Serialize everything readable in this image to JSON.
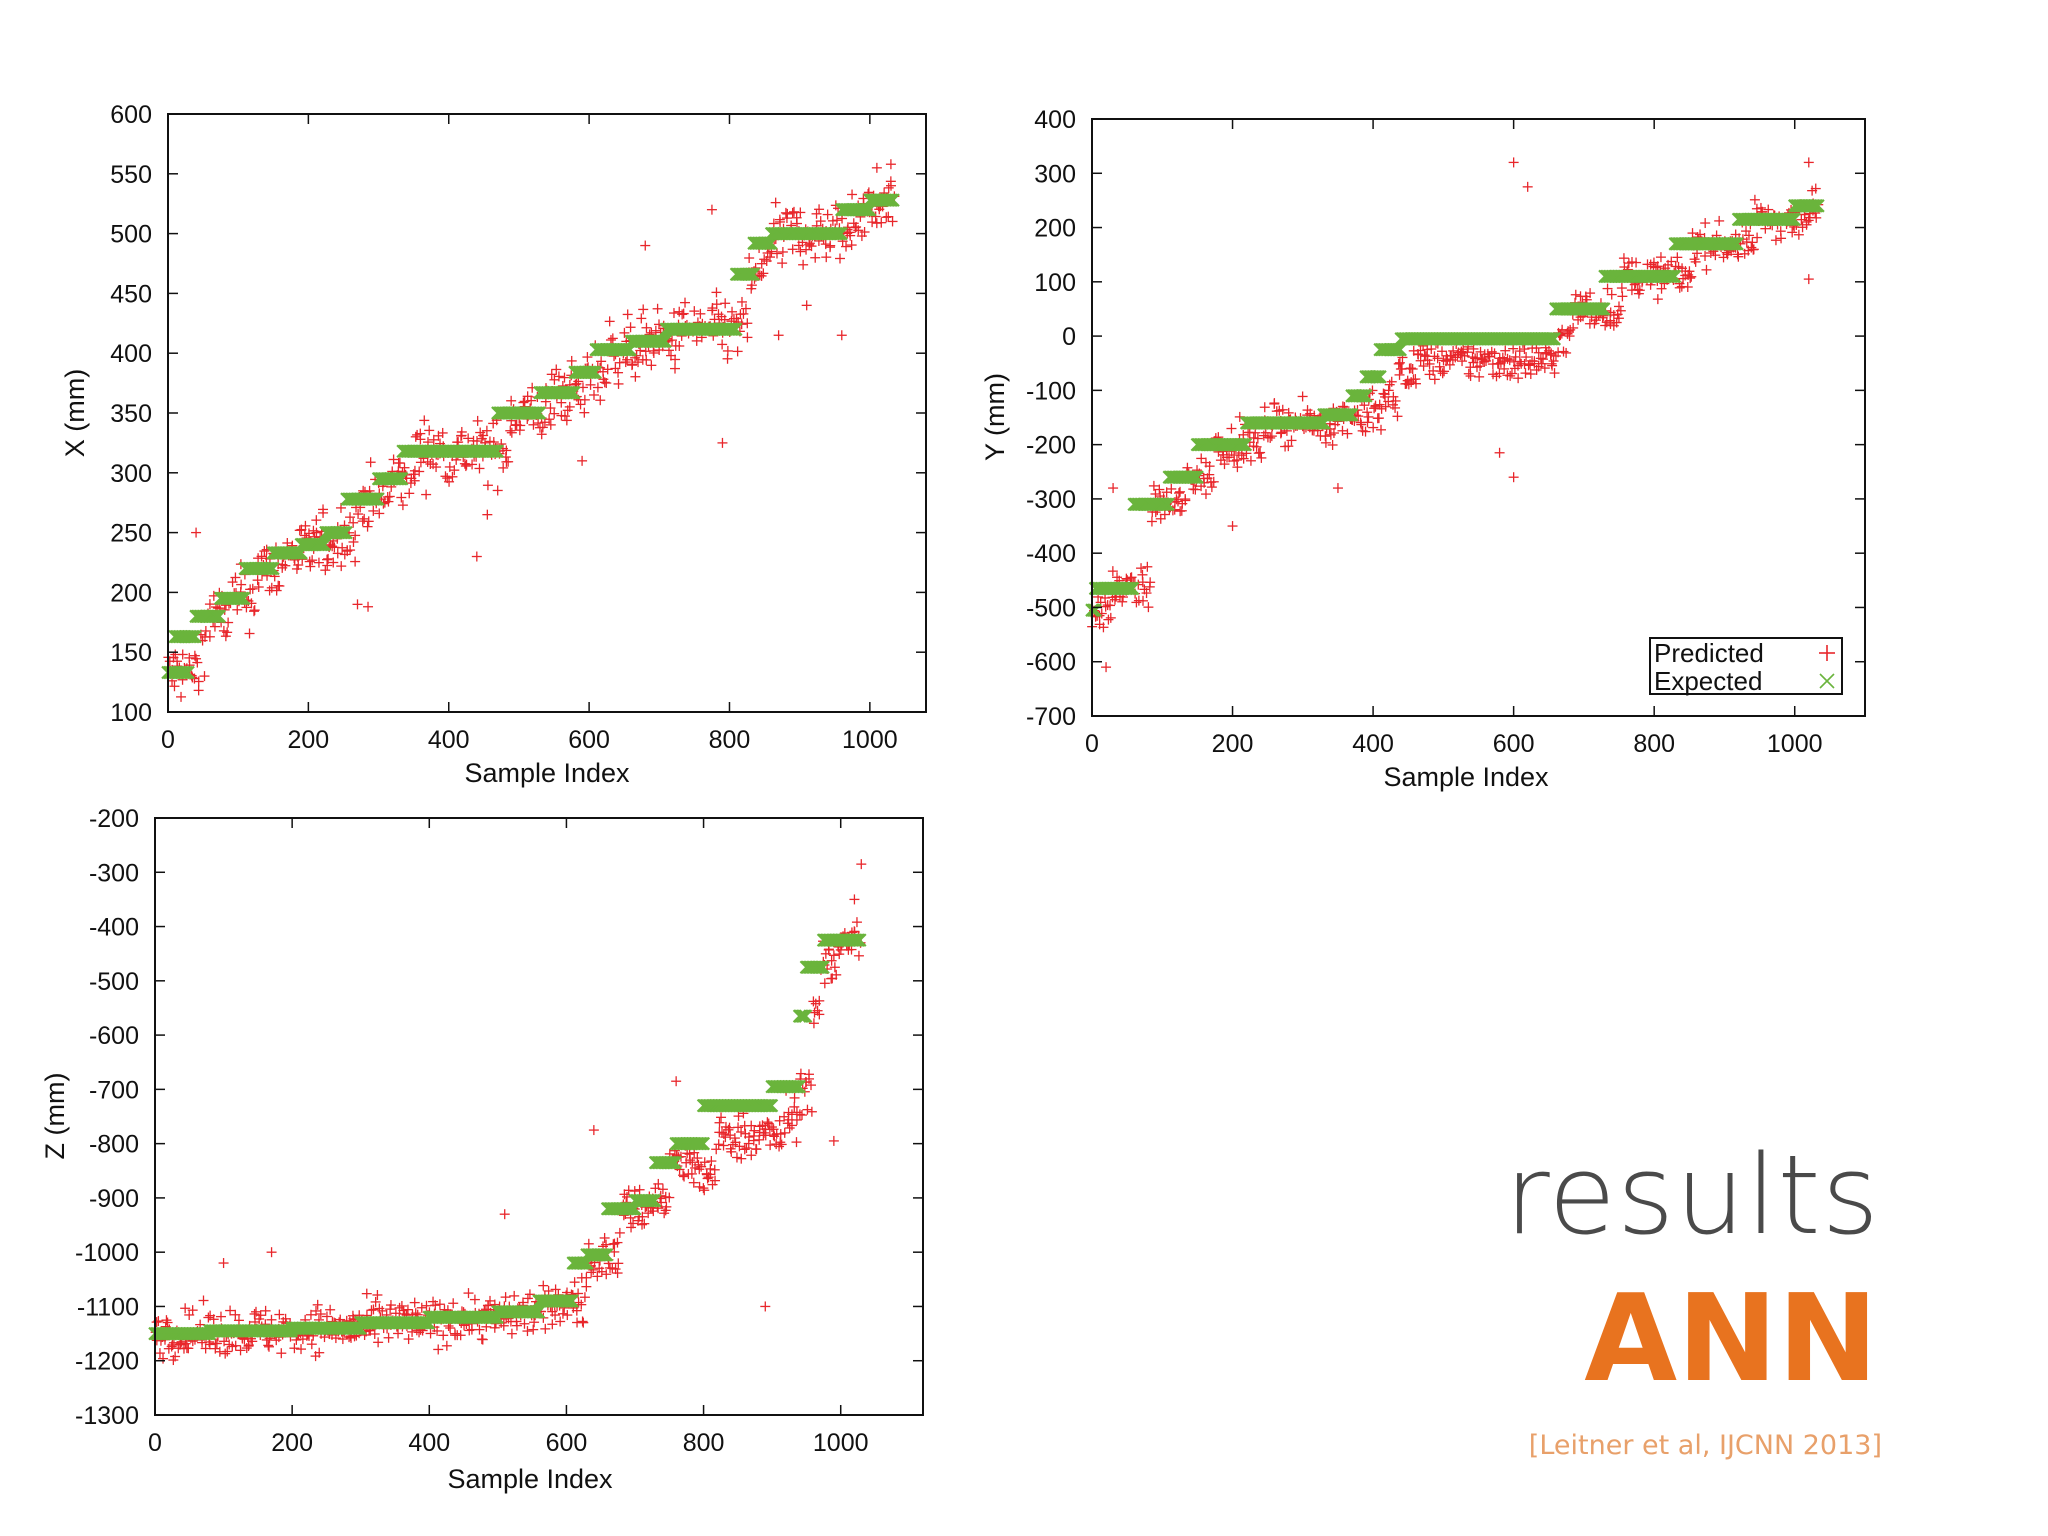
{
  "slide": {
    "title": "results",
    "subtitle": "ANN",
    "citation": "[Leitner et al, IJCNN 2013]"
  },
  "colors": {
    "predicted": "#e8262b",
    "expected": "#6ab43c",
    "axis": "#111111",
    "title": "#4a4a4a",
    "subtitle": "#e8731f",
    "citation": "#e8a06a"
  },
  "chart_data": [
    {
      "type": "scatter",
      "id": "x",
      "xlabel": "Sample Index",
      "ylabel": "X (mm)",
      "xlim": [
        0,
        1080
      ],
      "ylim": [
        100,
        600
      ],
      "xticks": [
        0,
        200,
        400,
        600,
        800,
        1000
      ],
      "yticks": [
        100,
        150,
        200,
        250,
        300,
        350,
        400,
        450,
        500,
        550,
        600
      ],
      "legend": null,
      "expected_segments": [
        [
          0,
          30,
          133
        ],
        [
          10,
          40,
          163
        ],
        [
          40,
          75,
          180
        ],
        [
          75,
          110,
          195
        ],
        [
          110,
          150,
          220
        ],
        [
          150,
          190,
          233
        ],
        [
          190,
          225,
          240
        ],
        [
          225,
          255,
          250
        ],
        [
          255,
          300,
          278
        ],
        [
          300,
          335,
          295
        ],
        [
          335,
          470,
          318
        ],
        [
          470,
          530,
          350
        ],
        [
          530,
          580,
          367
        ],
        [
          580,
          610,
          384
        ],
        [
          610,
          660,
          403
        ],
        [
          660,
          710,
          410
        ],
        [
          710,
          810,
          420
        ],
        [
          810,
          835,
          466
        ],
        [
          835,
          860,
          492
        ],
        [
          860,
          960,
          500
        ],
        [
          960,
          1000,
          520
        ],
        [
          1000,
          1035,
          528
        ]
      ],
      "predicted_outliers": [
        [
          40,
          250
        ],
        [
          270,
          190
        ],
        [
          285,
          188
        ],
        [
          440,
          230
        ],
        [
          455,
          265
        ],
        [
          590,
          310
        ],
        [
          680,
          490
        ],
        [
          775,
          520
        ],
        [
          790,
          325
        ],
        [
          870,
          415
        ],
        [
          960,
          415
        ],
        [
          1010,
          555
        ],
        [
          1030,
          558
        ],
        [
          910,
          440
        ]
      ],
      "predicted_noise": 18,
      "predicted_lag": 4
    },
    {
      "type": "scatter",
      "id": "y",
      "xlabel": "Sample Index",
      "ylabel": "Y (mm)",
      "xlim": [
        0,
        1100
      ],
      "ylim": [
        -700,
        400
      ],
      "xticks": [
        0,
        200,
        400,
        600,
        800,
        1000
      ],
      "yticks": [
        -700,
        -600,
        -500,
        -400,
        -300,
        -200,
        -100,
        0,
        100,
        200,
        300,
        400
      ],
      "legend": {
        "position": "bottom-right",
        "entries": [
          "Predicted",
          "Expected"
        ]
      },
      "expected_segments": [
        [
          0,
          5,
          -505
        ],
        [
          5,
          60,
          -465
        ],
        [
          60,
          110,
          -310
        ],
        [
          110,
          150,
          -260
        ],
        [
          150,
          220,
          -200
        ],
        [
          220,
          330,
          -160
        ],
        [
          330,
          370,
          -145
        ],
        [
          370,
          390,
          -110
        ],
        [
          390,
          410,
          -75
        ],
        [
          410,
          440,
          -25
        ],
        [
          440,
          660,
          -5
        ],
        [
          660,
          730,
          50
        ],
        [
          730,
          830,
          110
        ],
        [
          830,
          920,
          170
        ],
        [
          920,
          1000,
          215
        ],
        [
          1000,
          1035,
          240
        ]
      ],
      "predicted_outliers": [
        [
          20,
          -610
        ],
        [
          30,
          -280
        ],
        [
          600,
          320
        ],
        [
          620,
          275
        ],
        [
          580,
          -215
        ],
        [
          600,
          -260
        ],
        [
          1020,
          320
        ],
        [
          1020,
          105
        ],
        [
          200,
          -350
        ],
        [
          350,
          -280
        ]
      ],
      "predicted_noise": 25,
      "predicted_lag": 6
    },
    {
      "type": "scatter",
      "id": "z",
      "xlabel": "Sample Index",
      "ylabel": "Z (mm)",
      "xlim": [
        0,
        1120
      ],
      "ylim": [
        -1300,
        -200
      ],
      "xticks": [
        0,
        200,
        400,
        600,
        800,
        1000
      ],
      "yticks": [
        -1300,
        -1200,
        -1100,
        -1000,
        -900,
        -800,
        -700,
        -600,
        -500,
        -400,
        -300,
        -200
      ],
      "legend": null,
      "expected_segments": [
        [
          0,
          80,
          -1150
        ],
        [
          80,
          200,
          -1145
        ],
        [
          200,
          300,
          -1140
        ],
        [
          300,
          400,
          -1130
        ],
        [
          400,
          500,
          -1120
        ],
        [
          500,
          560,
          -1110
        ],
        [
          560,
          610,
          -1090
        ],
        [
          610,
          630,
          -1020
        ],
        [
          630,
          660,
          -1005
        ],
        [
          660,
          700,
          -920
        ],
        [
          700,
          730,
          -905
        ],
        [
          730,
          760,
          -835
        ],
        [
          760,
          800,
          -800
        ],
        [
          800,
          900,
          -730
        ],
        [
          900,
          940,
          -695
        ],
        [
          940,
          950,
          -565
        ],
        [
          950,
          975,
          -475
        ],
        [
          975,
          1030,
          -425
        ]
      ],
      "predicted_outliers": [
        [
          100,
          -1020
        ],
        [
          170,
          -1000
        ],
        [
          510,
          -930
        ],
        [
          640,
          -775
        ],
        [
          760,
          -685
        ],
        [
          890,
          -1100
        ],
        [
          1030,
          -285
        ],
        [
          1020,
          -350
        ],
        [
          990,
          -795
        ]
      ],
      "predicted_noise": 30,
      "predicted_lag": 5
    }
  ]
}
